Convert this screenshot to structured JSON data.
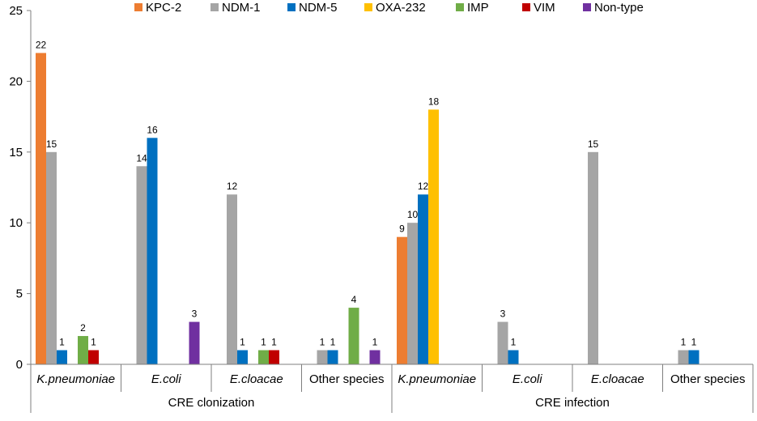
{
  "chart_data": {
    "type": "bar",
    "title": "",
    "xlabel": "",
    "ylabel": "",
    "ylim": [
      0,
      25
    ],
    "yticks": [
      0,
      5,
      10,
      15,
      20,
      25
    ],
    "legend_position": "top",
    "series": [
      {
        "name": "KPC-2",
        "color": "#ED7D31"
      },
      {
        "name": "NDM-1",
        "color": "#A5A5A5"
      },
      {
        "name": "NDM-5",
        "color": "#0070C0"
      },
      {
        "name": "OXA-232",
        "color": "#FFC000"
      },
      {
        "name": "IMP",
        "color": "#70AD47"
      },
      {
        "name": "VIM",
        "color": "#C00000"
      },
      {
        "name": "Non-type",
        "color": "#7030A0"
      }
    ],
    "groups": [
      {
        "label": "CRE clonization",
        "categories": [
          {
            "label": "K.pneumoniae",
            "italic": true,
            "values": {
              "KPC-2": 22,
              "NDM-1": 15,
              "NDM-5": 1,
              "IMP": 2,
              "VIM": 1
            }
          },
          {
            "label": "E.coli",
            "italic": true,
            "values": {
              "NDM-1": 14,
              "NDM-5": 16,
              "Non-type": 3
            }
          },
          {
            "label": "E.cloacae",
            "italic": true,
            "values": {
              "NDM-1": 12,
              "NDM-5": 1,
              "IMP": 1,
              "VIM": 1
            }
          },
          {
            "label": "Other species",
            "italic": false,
            "values": {
              "NDM-1": 1,
              "NDM-5": 1,
              "IMP": 4,
              "Non-type": 1
            }
          }
        ]
      },
      {
        "label": "CRE infection",
        "categories": [
          {
            "label": "K.pneumoniae",
            "italic": true,
            "values": {
              "KPC-2": 9,
              "NDM-1": 10,
              "NDM-5": 12,
              "OXA-232": 18
            }
          },
          {
            "label": "E.coli",
            "italic": true,
            "values": {
              "NDM-1": 3,
              "NDM-5": 1
            }
          },
          {
            "label": "E.cloacae",
            "italic": true,
            "values": {
              "NDM-1": 15
            }
          },
          {
            "label": "Other species",
            "italic": false,
            "values": {
              "NDM-1": 1,
              "NDM-5": 1
            }
          }
        ]
      }
    ]
  }
}
